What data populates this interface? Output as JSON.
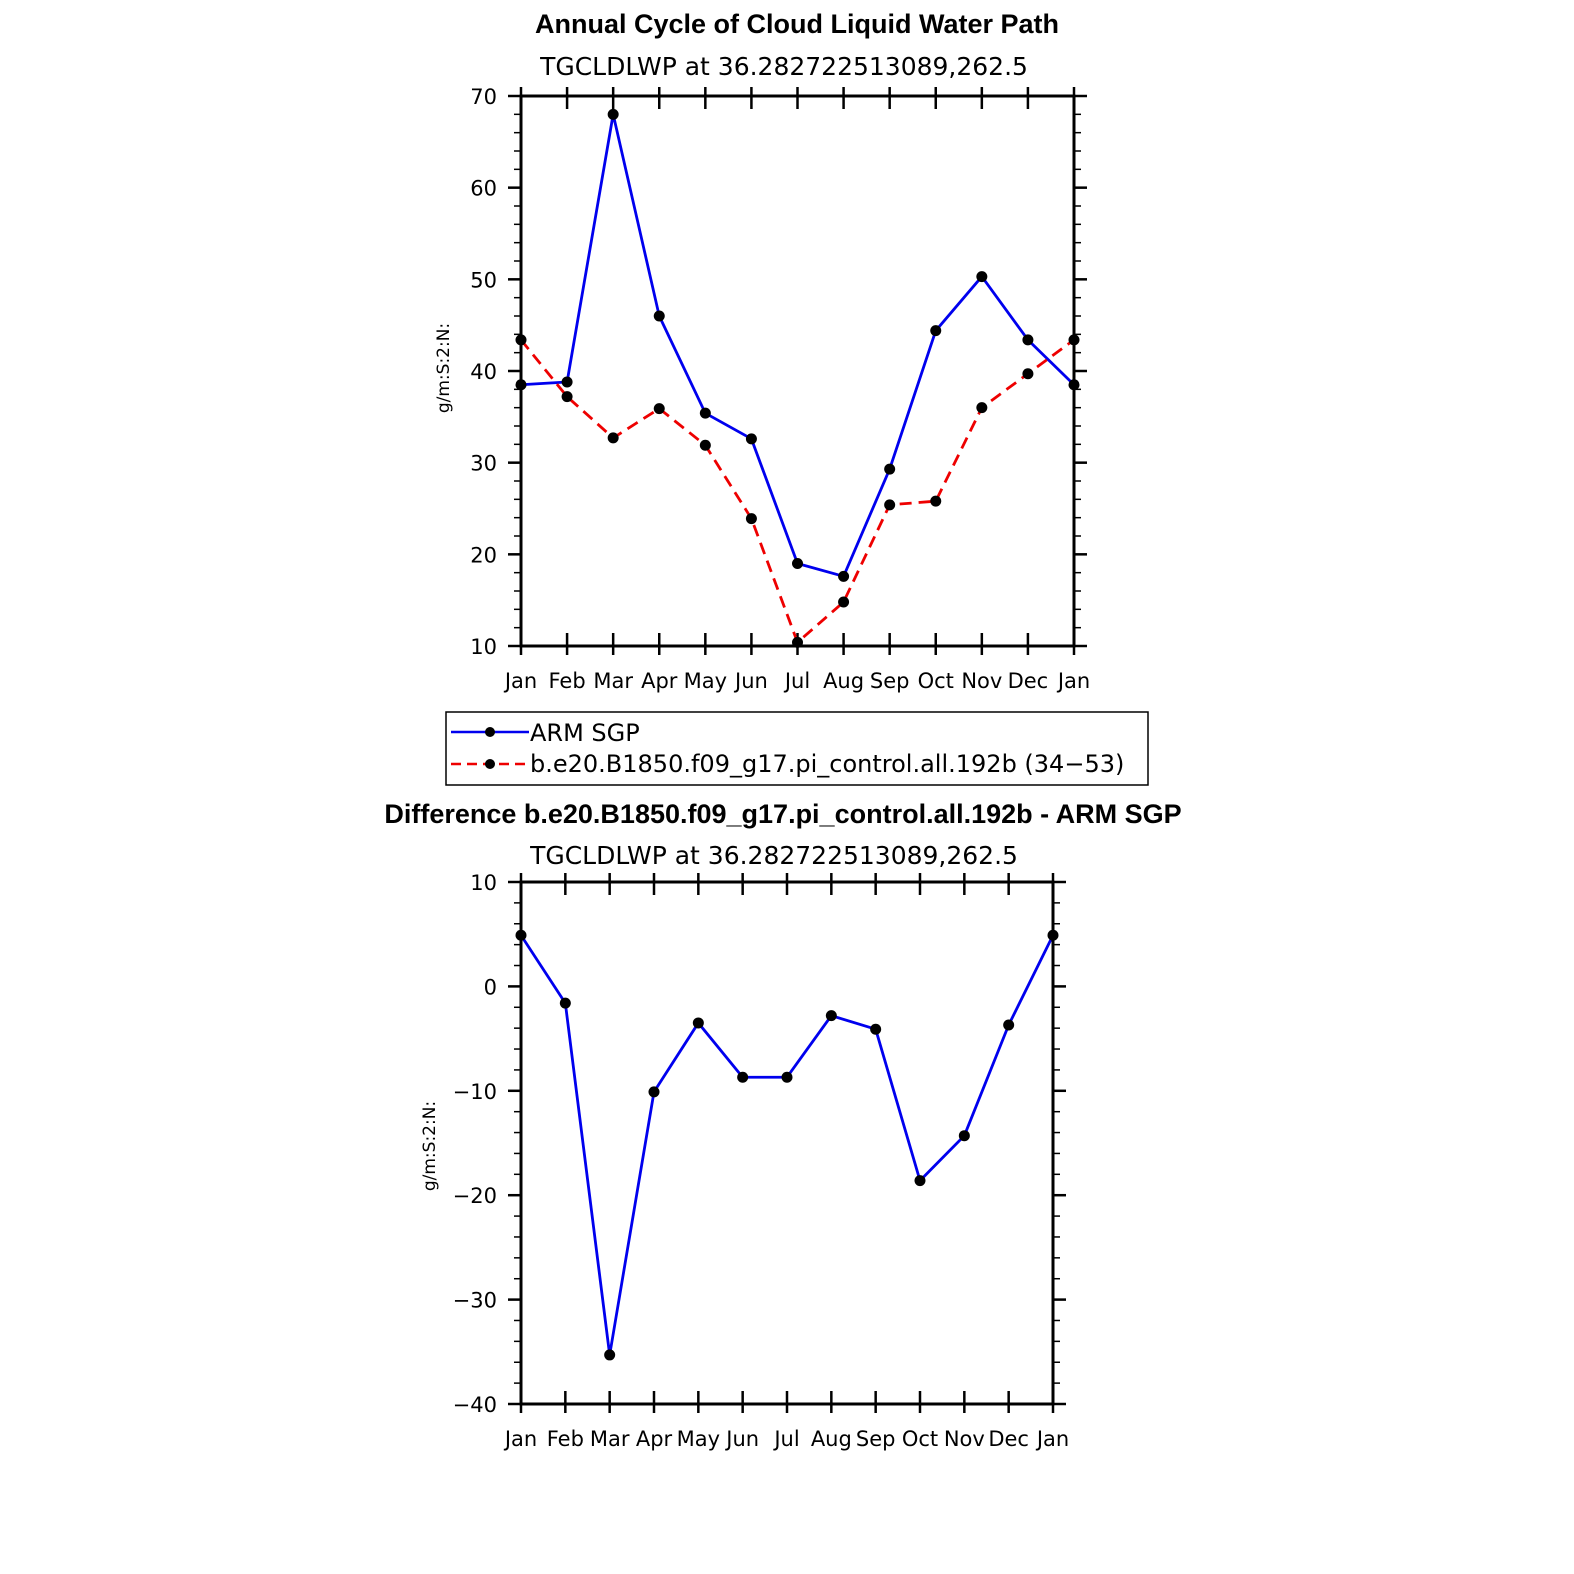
{
  "chart_data": [
    {
      "type": "line",
      "title": "Annual Cycle of Cloud Liquid Water Path",
      "subtitle": "TGCLDLWP at 36.282722513089,262.5",
      "ylabel": "g/m:S:2:N:",
      "categories": [
        "Jan",
        "Feb",
        "Mar",
        "Apr",
        "May",
        "Jun",
        "Jul",
        "Aug",
        "Sep",
        "Oct",
        "Nov",
        "Dec",
        "Jan"
      ],
      "ylim": [
        10,
        70
      ],
      "yticks": [
        10,
        20,
        30,
        40,
        50,
        60,
        70
      ],
      "ytick_labels": [
        "10",
        "20",
        "30",
        "40",
        "50",
        "60",
        "70"
      ],
      "series": [
        {
          "name": "ARM SGP",
          "color": "#0000ee",
          "dashed": false,
          "values": [
            38.5,
            38.8,
            68.0,
            46.0,
            35.4,
            32.6,
            19.0,
            17.6,
            29.3,
            44.4,
            50.3,
            43.4,
            38.5
          ]
        },
        {
          "name": "b.e20.B1850.f09_g17.pi_control.all.192b (34−53)",
          "color": "#ee0000",
          "dashed": true,
          "values": [
            43.4,
            37.2,
            32.7,
            35.9,
            31.9,
            23.9,
            10.4,
            14.8,
            25.4,
            25.8,
            36.0,
            39.7,
            43.4
          ]
        }
      ],
      "legend_position": "below"
    },
    {
      "type": "line",
      "title": "Difference b.e20.B1850.f09_g17.pi_control.all.192b - ARM SGP",
      "subtitle": "TGCLDLWP at 36.282722513089,262.5",
      "ylabel": "g/m:S:2:N:",
      "categories": [
        "Jan",
        "Feb",
        "Mar",
        "Apr",
        "May",
        "Jun",
        "Jul",
        "Aug",
        "Sep",
        "Oct",
        "Nov",
        "Dec",
        "Jan"
      ],
      "ylim": [
        -40,
        10
      ],
      "yticks": [
        -40,
        -30,
        -20,
        -10,
        0,
        10
      ],
      "ytick_labels": [
        "−40",
        "−30",
        "−20",
        "−10",
        "0",
        "10"
      ],
      "series": [
        {
          "color": "#0000ee",
          "dashed": false,
          "values": [
            4.9,
            -1.6,
            -35.3,
            -10.1,
            -3.5,
            -8.7,
            -8.7,
            -2.8,
            -4.1,
            -18.6,
            -14.3,
            -3.7,
            4.9
          ]
        }
      ]
    }
  ]
}
